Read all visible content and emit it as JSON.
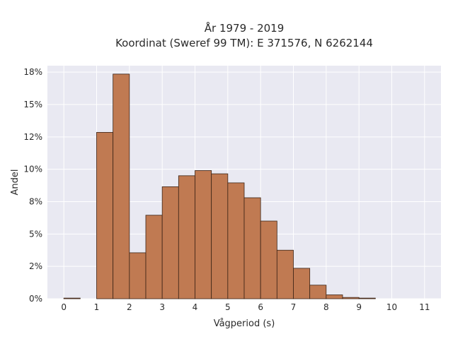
{
  "chart_data": {
    "type": "bar",
    "title_line1": "År 1979 - 2019",
    "title_line2": "Koordinat (Sweref 99 TM): E 371576, N 6262144",
    "xlabel": "Vågperiod (s)",
    "ylabel": "Andel",
    "bin_width": 0.5,
    "bins": [
      {
        "start": 0.0,
        "value": 0.0005
      },
      {
        "start": 0.5,
        "value": 0.0
      },
      {
        "start": 1.0,
        "value": 0.1285
      },
      {
        "start": 1.5,
        "value": 0.1735
      },
      {
        "start": 2.0,
        "value": 0.0355
      },
      {
        "start": 2.5,
        "value": 0.0645
      },
      {
        "start": 3.0,
        "value": 0.0865
      },
      {
        "start": 3.5,
        "value": 0.095
      },
      {
        "start": 4.0,
        "value": 0.099
      },
      {
        "start": 4.5,
        "value": 0.0965
      },
      {
        "start": 5.0,
        "value": 0.0895
      },
      {
        "start": 5.5,
        "value": 0.078
      },
      {
        "start": 6.0,
        "value": 0.06
      },
      {
        "start": 6.5,
        "value": 0.0375
      },
      {
        "start": 7.0,
        "value": 0.0235
      },
      {
        "start": 7.5,
        "value": 0.0105
      },
      {
        "start": 8.0,
        "value": 0.003
      },
      {
        "start": 8.5,
        "value": 0.001
      },
      {
        "start": 9.0,
        "value": 0.0005
      }
    ],
    "xlim": [
      -0.5,
      11.5
    ],
    "ylim": [
      0,
      0.18
    ],
    "xticks": [
      0,
      1,
      2,
      3,
      4,
      5,
      6,
      7,
      8,
      9,
      10,
      11
    ],
    "yticks": [
      0,
      0.025,
      0.05,
      0.075,
      0.1,
      0.125,
      0.15,
      0.175
    ],
    "ytick_labels": [
      "0%",
      "2%",
      "5%",
      "8%",
      "10%",
      "12%",
      "15%",
      "18%"
    ],
    "grid": true,
    "colors": {
      "bar_fill": "#c07a52",
      "bar_edge": "#3b2416",
      "plot_bg": "#e9e9f2",
      "grid": "#ffffff"
    }
  }
}
